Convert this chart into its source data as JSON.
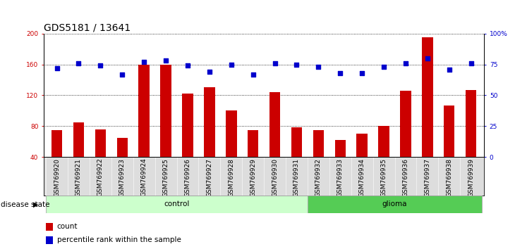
{
  "title": "GDS5181 / 13641",
  "samples": [
    "GSM769920",
    "GSM769921",
    "GSM769922",
    "GSM769923",
    "GSM769924",
    "GSM769925",
    "GSM769926",
    "GSM769927",
    "GSM769928",
    "GSM769929",
    "GSM769930",
    "GSM769931",
    "GSM769932",
    "GSM769933",
    "GSM769934",
    "GSM769935",
    "GSM769936",
    "GSM769937",
    "GSM769938",
    "GSM769939"
  ],
  "counts": [
    75,
    85,
    76,
    65,
    160,
    160,
    122,
    130,
    100,
    75,
    124,
    78,
    75,
    62,
    70,
    80,
    126,
    195,
    107,
    127
  ],
  "percentiles": [
    72,
    76,
    74,
    67,
    77,
    78,
    74,
    69,
    75,
    67,
    76,
    75,
    73,
    68,
    68,
    73,
    76,
    80,
    71,
    76
  ],
  "control_count": 12,
  "glioma_count": 8,
  "ylim_left": [
    40,
    200
  ],
  "ylim_right": [
    0,
    100
  ],
  "yticks_left": [
    40,
    80,
    120,
    160,
    200
  ],
  "yticks_right": [
    0,
    25,
    50,
    75,
    100
  ],
  "bar_color": "#cc0000",
  "dot_color": "#0000cc",
  "control_color": "#ccffcc",
  "glioma_color": "#55cc55",
  "grid_color": "#000000",
  "bar_width": 0.5,
  "title_fontsize": 10,
  "tick_fontsize": 6.5,
  "label_fontsize": 7.5,
  "disease_label": "disease state",
  "legend_count": "count",
  "legend_percentile": "percentile rank within the sample"
}
